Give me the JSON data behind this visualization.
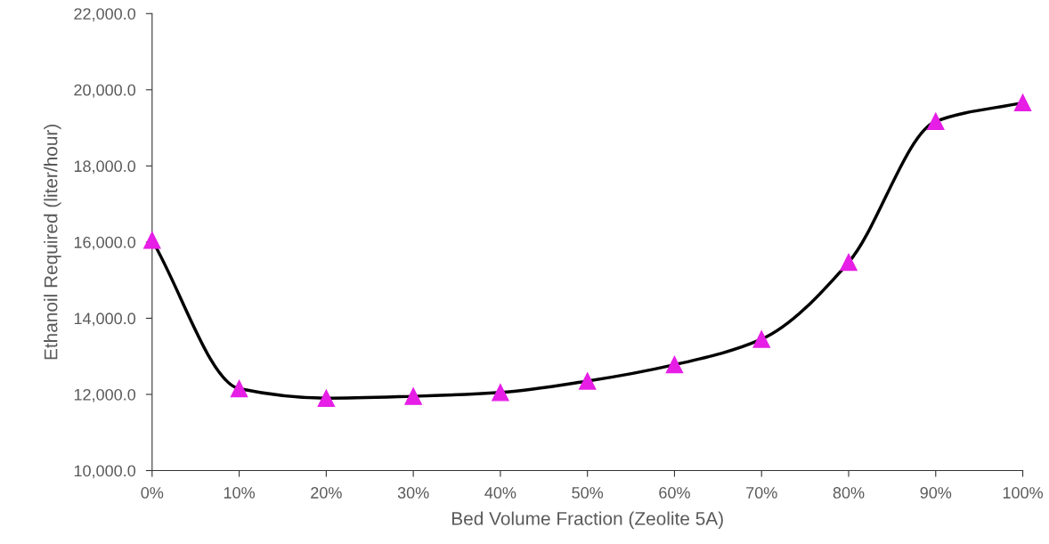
{
  "chart_data": {
    "type": "line",
    "xlabel": "Bed Volume Fraction (Zeolite 5A)",
    "ylabel": "Ethanoil Required (liter/hour)",
    "x": [
      0,
      10,
      20,
      30,
      40,
      50,
      60,
      70,
      80,
      90,
      100
    ],
    "series": [
      {
        "color": "#000000",
        "colors": [
          "#e61ee6",
          "#e61ee6",
          "#e61ee6",
          "#e61ee6",
          "#e61ee6",
          "#e61ee6",
          "#e61ee6",
          "#e61ee6",
          "#e61ee6",
          "#e61ee6",
          "#e61ee6"
        ],
        "values": [
          16050,
          12150,
          11900,
          11950,
          12050,
          12350,
          12780,
          13450,
          15470,
          19170,
          19660
        ]
      }
    ],
    "xlim": [
      0,
      100
    ],
    "xticks": [
      {
        "value": 0,
        "label": "0%"
      },
      {
        "value": 10,
        "label": "10%"
      },
      {
        "value": 20,
        "label": "20%"
      },
      {
        "value": 30,
        "label": "30%"
      },
      {
        "value": 40,
        "label": "40%"
      },
      {
        "value": 50,
        "label": "50%"
      },
      {
        "value": 60,
        "label": "60%"
      },
      {
        "value": 70,
        "label": "70%"
      },
      {
        "value": 80,
        "label": "80%"
      },
      {
        "value": 90,
        "label": "90%"
      },
      {
        "value": 100,
        "label": "100%"
      }
    ],
    "ylim": [
      10000,
      22000
    ],
    "yticks": [
      {
        "value": 10000,
        "label": "10,000.0"
      },
      {
        "value": 12000,
        "label": "12,000.0"
      },
      {
        "value": 14000,
        "label": "14,000.0"
      },
      {
        "value": 16000,
        "label": "16,000.0"
      },
      {
        "value": 18000,
        "label": "18,000.0"
      },
      {
        "value": 20000,
        "label": "20,000.0"
      },
      {
        "value": 22000,
        "label": "22,000.0"
      }
    ],
    "grid": false,
    "marker": "triangle",
    "line_style": "solid"
  }
}
